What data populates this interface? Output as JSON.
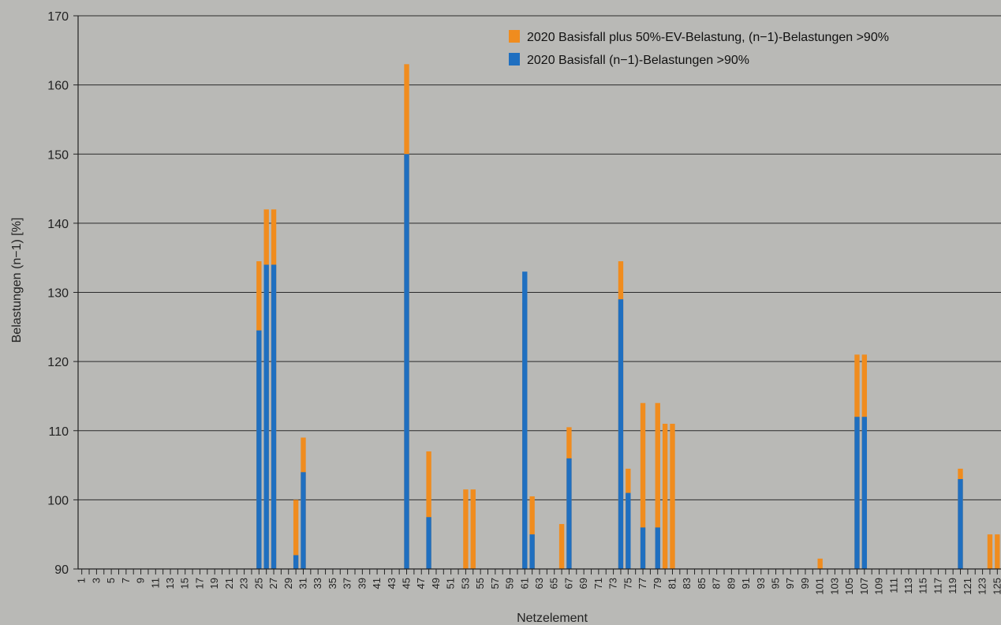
{
  "chart_data": {
    "type": "bar",
    "stacked": true,
    "xlabel": "Netzelement",
    "ylabel": "Belastungen (n−1) [%]",
    "ylim": [
      90,
      170
    ],
    "yticks": [
      90,
      100,
      110,
      120,
      130,
      140,
      150,
      160,
      170
    ],
    "xrange": [
      1,
      125
    ],
    "xtick_step": 2,
    "grid": true,
    "legend_position": "top-right",
    "series": [
      {
        "name": "2020 Basisfall (n−1)-Belastungen >90%",
        "color": "#1f6fc0",
        "points": [
          {
            "x": 25,
            "y": 124.5
          },
          {
            "x": 26,
            "y": 134
          },
          {
            "x": 27,
            "y": 134
          },
          {
            "x": 30,
            "y": 92
          },
          {
            "x": 31,
            "y": 104
          },
          {
            "x": 45,
            "y": 150
          },
          {
            "x": 48,
            "y": 97.5
          },
          {
            "x": 61,
            "y": 133
          },
          {
            "x": 62,
            "y": 95
          },
          {
            "x": 67,
            "y": 106
          },
          {
            "x": 74,
            "y": 129
          },
          {
            "x": 75,
            "y": 101
          },
          {
            "x": 77,
            "y": 96
          },
          {
            "x": 79,
            "y": 96
          },
          {
            "x": 106,
            "y": 112
          },
          {
            "x": 107,
            "y": 112
          },
          {
            "x": 120,
            "y": 103
          }
        ]
      },
      {
        "name": "2020 Basisfall plus 50%-EV-Belastung, (n−1)-Belastungen >90%",
        "color": "#f08c1e",
        "points": [
          {
            "x": 25,
            "y": 134.5
          },
          {
            "x": 26,
            "y": 142
          },
          {
            "x": 27,
            "y": 142
          },
          {
            "x": 30,
            "y": 100
          },
          {
            "x": 31,
            "y": 109
          },
          {
            "x": 45,
            "y": 163
          },
          {
            "x": 48,
            "y": 107
          },
          {
            "x": 53,
            "y": 101.5
          },
          {
            "x": 54,
            "y": 101.5
          },
          {
            "x": 61,
            "y": 128.5
          },
          {
            "x": 62,
            "y": 100.5
          },
          {
            "x": 66,
            "y": 96.5
          },
          {
            "x": 67,
            "y": 110.5
          },
          {
            "x": 74,
            "y": 134.5
          },
          {
            "x": 75,
            "y": 104.5
          },
          {
            "x": 77,
            "y": 114
          },
          {
            "x": 79,
            "y": 114
          },
          {
            "x": 80,
            "y": 111
          },
          {
            "x": 81,
            "y": 111
          },
          {
            "x": 101,
            "y": 91.5
          },
          {
            "x": 106,
            "y": 121
          },
          {
            "x": 107,
            "y": 121
          },
          {
            "x": 120,
            "y": 104.5
          },
          {
            "x": 124,
            "y": 95
          },
          {
            "x": 125,
            "y": 95
          }
        ]
      }
    ]
  }
}
